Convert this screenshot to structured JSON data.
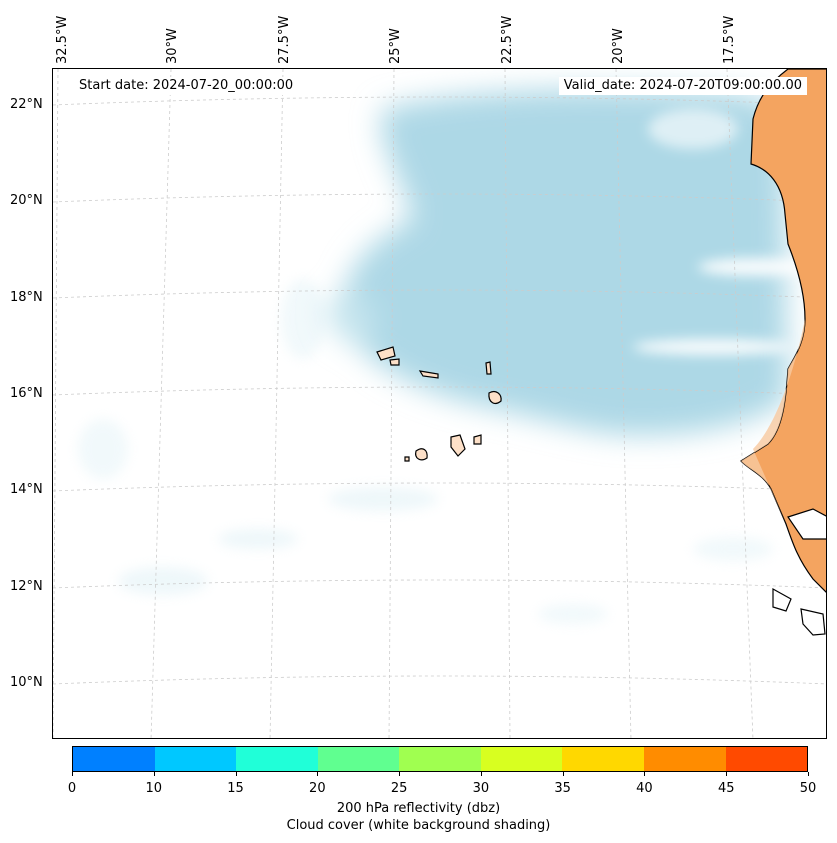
{
  "header": {
    "start_date": "Start date: 2024-07-20_00:00:00",
    "valid_date": "Valid_date: 2024-07-20T09:00:00.00"
  },
  "map": {
    "longitude_labels": [
      "32.5°W",
      "30°W",
      "27.5°W",
      "25°W",
      "22.5°W",
      "20°W",
      "17.5°W"
    ],
    "latitude_labels": [
      "22°N",
      "20°N",
      "18°N",
      "16°N",
      "14°N",
      "12°N",
      "10°N"
    ],
    "colors": {
      "cloud_cover": "#add8e6",
      "land": "#f4a460",
      "islands": "#fde0c8",
      "gridline": "#cccccc"
    }
  },
  "colorbar": {
    "ticks": [
      "0",
      "10",
      "15",
      "20",
      "25",
      "30",
      "35",
      "40",
      "45",
      "50"
    ],
    "colors": [
      "#0080ff",
      "#00c8ff",
      "#20ffd8",
      "#60ff90",
      "#a0ff50",
      "#d8ff20",
      "#ffd800",
      "#ff8c00",
      "#ff4a00"
    ],
    "label_line1": "200 hPa reflectivity (dbz)",
    "label_line2": "Cloud cover (white background shading)"
  }
}
